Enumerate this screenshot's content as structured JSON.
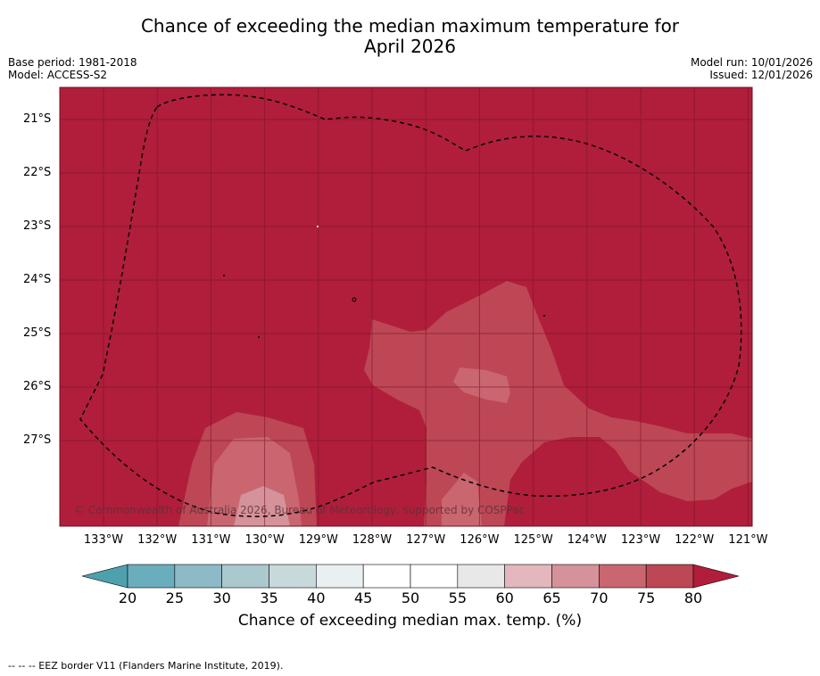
{
  "title_line1": "Chance of exceeding the median maximum temperature for",
  "title_line2": "April 2026",
  "meta_left": [
    "Base period: 1981-2018",
    "Model: ACCESS-S2"
  ],
  "meta_right": [
    "Model run: 10/01/2026",
    "Issued: 12/01/2026"
  ],
  "lat_labels": [
    "21°S",
    "22°S",
    "23°S",
    "24°S",
    "25°S",
    "26°S",
    "27°S"
  ],
  "lon_labels": [
    "133°W",
    "132°W",
    "131°W",
    "130°W",
    "129°W",
    "128°W",
    "127°W",
    "126°W",
    "125°W",
    "124°W",
    "123°W",
    "122°W",
    "121°W"
  ],
  "copyright": "© Commonwealth of Australia 2026, Bureau of Meteorology, supported by COSPPac",
  "colorbar": {
    "ticks": [
      "20",
      "25",
      "30",
      "35",
      "40",
      "45",
      "50",
      "55",
      "60",
      "65",
      "70",
      "75",
      "80"
    ],
    "colors": [
      "#6aaebd",
      "#8dbac6",
      "#aac9ce",
      "#c8d9dc",
      "#eaf0f2",
      "#ffffff",
      "#ffffff",
      "#e8e8e8",
      "#e3b7bd",
      "#d5929a",
      "#c9666f",
      "#bd4755"
    ],
    "under_color": "#4fa0ae",
    "over_color": "#b01e3b",
    "label": "Chance of exceeding median max. temp. (%)"
  },
  "footer": "--  --  -- EEZ border V11 (Flanders Marine Institute, 2019)."
}
